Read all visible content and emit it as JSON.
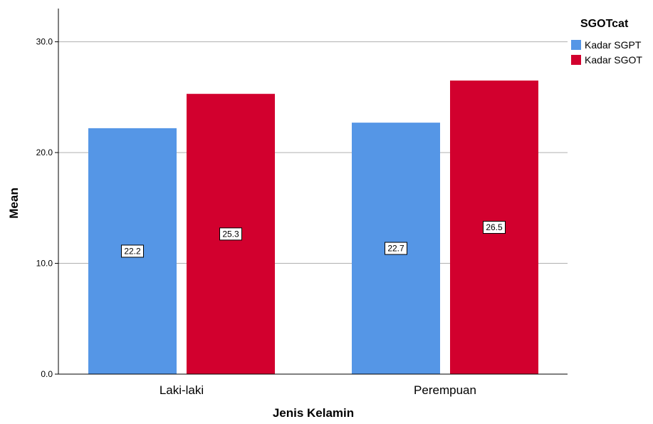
{
  "chart_data": {
    "type": "bar",
    "xlabel": "Jenis Kelamin",
    "ylabel": "Mean",
    "categories": [
      "Laki-laki",
      "Perempuan"
    ],
    "ylim": [
      0,
      33
    ],
    "yticks": [
      "0.0",
      "10.0",
      "20.0",
      "30.0"
    ],
    "grid": true,
    "legend": {
      "title": "SGOTcat",
      "placement": "top-right"
    },
    "series": [
      {
        "name": "Kadar SGPT",
        "color": "#5596e6",
        "values": [
          22.2,
          22.7
        ],
        "labels": [
          "22.2",
          "22.7"
        ]
      },
      {
        "name": "Kadar SGOT",
        "color": "#d2002e",
        "values": [
          25.3,
          26.5
        ],
        "labels": [
          "25.3",
          "26.5"
        ]
      }
    ]
  }
}
